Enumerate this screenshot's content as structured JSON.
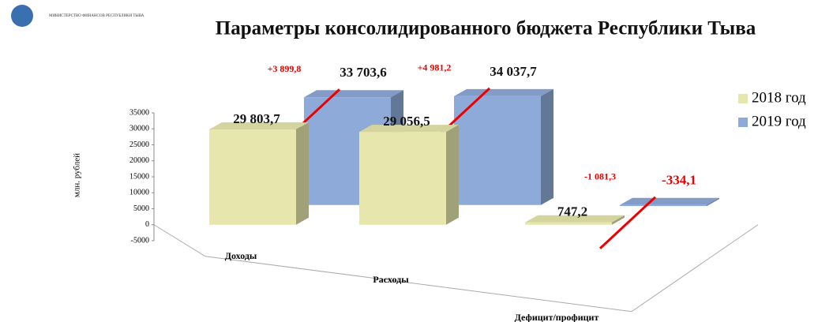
{
  "logo_text": "МИНИСТЕРСТВО ФИНАНСОВ РЕСПУБЛИКИ ТЫВА",
  "chart_data": {
    "type": "bar",
    "title": "Параметры консолидированного бюджета Республики Тыва",
    "y_axis_label": "млн. рублей",
    "categories": [
      "Доходы",
      "Расходы",
      "Дефицит/профицит"
    ],
    "series": [
      {
        "name": "2018 год",
        "color": "#e6e6ad",
        "values": [
          29803.7,
          29056.5,
          747.2
        ],
        "value_labels": [
          "29 803,7",
          "29 056,5",
          "747,2"
        ]
      },
      {
        "name": "2019 год",
        "color": "#8eaad8",
        "values": [
          33703.6,
          34037.7,
          -334.1
        ],
        "value_labels": [
          "33 703,6",
          "34  037,7",
          "-334,1"
        ]
      }
    ],
    "annotations": [
      "+3 899,8",
      "+4 981,2",
      "-1 081,3"
    ],
    "ylim": [
      -5000,
      35000
    ],
    "yticks": [
      -5000,
      0,
      5000,
      10000,
      15000,
      20000,
      25000,
      30000,
      35000
    ],
    "legend": "right"
  }
}
